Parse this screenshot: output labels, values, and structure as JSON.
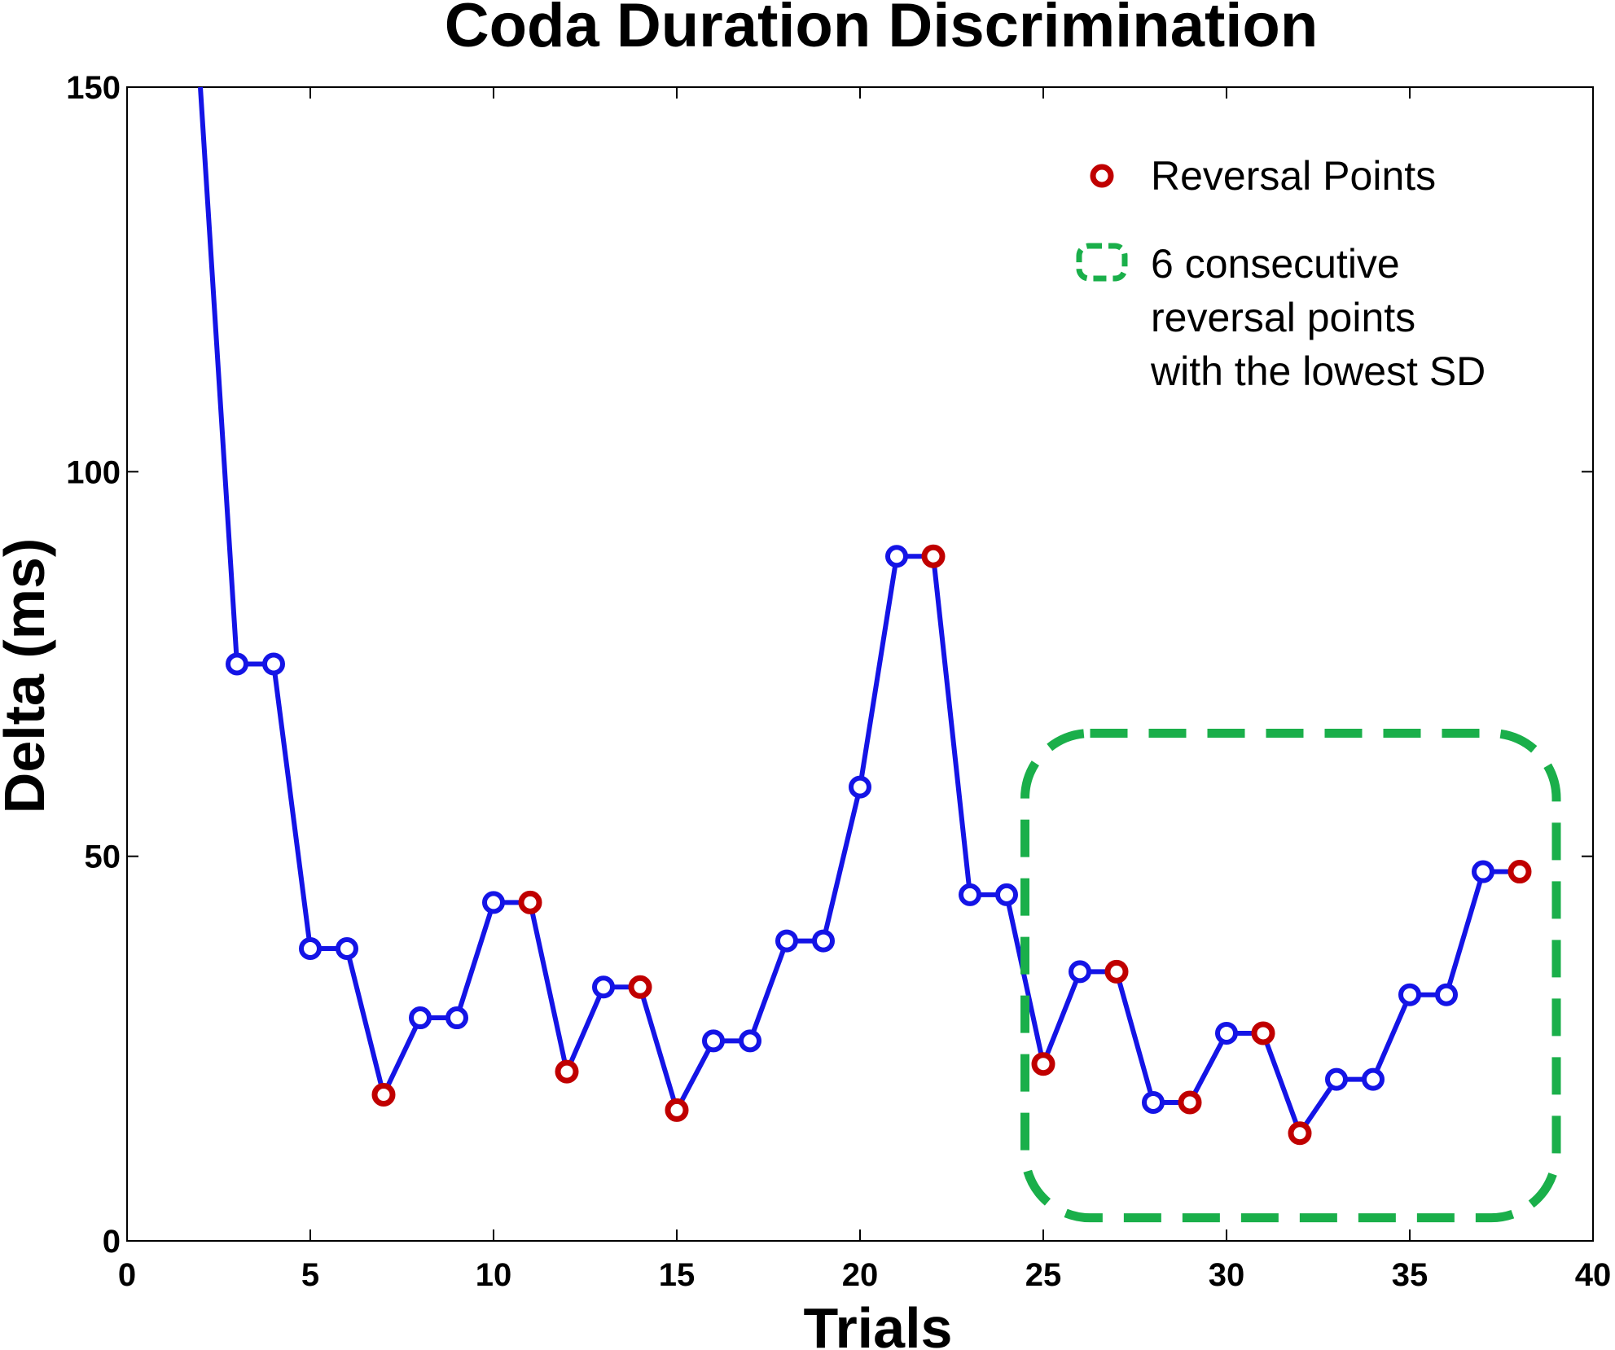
{
  "chart_data": {
    "type": "line",
    "title": "Coda Duration Discrimination",
    "xlabel": "Trials",
    "ylabel": "Delta (ms)",
    "xlim": [
      0,
      40
    ],
    "ylim": [
      0,
      150
    ],
    "xticks": [
      0,
      5,
      10,
      15,
      20,
      25,
      30,
      35,
      40
    ],
    "yticks": [
      0,
      50,
      100,
      150
    ],
    "xtick_labels": [
      "0",
      "5",
      "10",
      "15",
      "20",
      "25",
      "30",
      "35",
      "40"
    ],
    "ytick_labels": [
      "0",
      "50",
      "100",
      "150"
    ],
    "grid": false,
    "series": [
      {
        "name": "Delta",
        "color": "#1414e6",
        "x": [
          2,
          3,
          4,
          5,
          6,
          7,
          8,
          9,
          10,
          11,
          12,
          13,
          14,
          15,
          16,
          17,
          18,
          19,
          20,
          21,
          22,
          23,
          24,
          25,
          26,
          27,
          28,
          29,
          30,
          31,
          32,
          33,
          34,
          35,
          36,
          37,
          38
        ],
        "y": [
          150,
          75,
          75,
          38,
          38,
          19,
          29,
          29,
          44,
          44,
          22,
          33,
          33,
          17,
          26,
          26,
          39,
          39,
          59,
          89,
          89,
          45,
          45,
          23,
          35,
          35,
          18,
          18,
          27,
          27,
          14,
          21,
          21,
          32,
          32,
          48,
          48
        ],
        "marker_from_index": 1
      }
    ],
    "reversal_points": {
      "name": "Reversal Points",
      "color": "#c00000",
      "x": [
        7,
        11,
        12,
        14,
        15,
        22,
        25,
        27,
        29,
        31,
        32,
        38
      ],
      "y": [
        19,
        44,
        22,
        33,
        17,
        89,
        23,
        35,
        18,
        27,
        14,
        48
      ]
    },
    "highlight_region": {
      "label": "6 consecutive reversal points with the lowest SD",
      "color": "#1aaf4a",
      "x_range": [
        24.5,
        39
      ],
      "y_range": [
        3,
        66
      ]
    },
    "legend": {
      "position": "top-right",
      "entries": [
        {
          "label": "Reversal Points"
        },
        {
          "lines": [
            "6 consecutive",
            "reversal points",
            "with the lowest SD"
          ]
        }
      ]
    }
  }
}
